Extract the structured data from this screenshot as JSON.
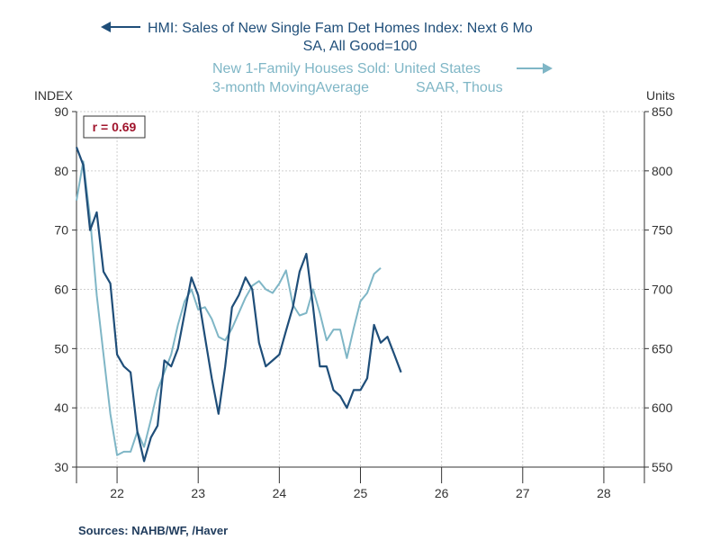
{
  "chart_data": {
    "type": "line",
    "title_dark_line1": "HMI: Sales of New Single Fam Det Homes Index: Next 6 Mo",
    "title_dark_line2": "SA, All Good=100",
    "title_light_line1": "New 1-Family Houses Sold: United States",
    "title_light_line2": "3-month MovingAverage",
    "title_light_units": "SAAR, Thous",
    "left_axis_label": "INDEX",
    "right_axis_label": "Units",
    "annotation": "r = 0.69",
    "x_ticks": [
      "22",
      "23",
      "24",
      "25",
      "26",
      "27",
      "28"
    ],
    "x_range": [
      2021.5,
      2028.5
    ],
    "left_ylim": [
      30,
      90
    ],
    "left_ticks": [
      30,
      40,
      50,
      60,
      70,
      80,
      90
    ],
    "right_ylim": [
      550,
      850
    ],
    "right_ticks": [
      550,
      600,
      650,
      700,
      750,
      800,
      850
    ],
    "grid": true,
    "series": [
      {
        "name": "HMI: Sales of New Single Fam Det Homes Index: Next 6 Mo",
        "axis": "left",
        "color": "#1f4e79",
        "x": [
          2021.5,
          2021.583,
          2021.667,
          2021.75,
          2021.833,
          2021.917,
          2022.0,
          2022.083,
          2022.167,
          2022.25,
          2022.333,
          2022.417,
          2022.5,
          2022.583,
          2022.667,
          2022.75,
          2022.833,
          2022.917,
          2023.0,
          2023.083,
          2023.167,
          2023.25,
          2023.333,
          2023.417,
          2023.5,
          2023.583,
          2023.667,
          2023.75,
          2023.833,
          2023.917,
          2024.0,
          2024.083,
          2024.167,
          2024.25,
          2024.333,
          2024.417,
          2024.5,
          2024.583,
          2024.667,
          2024.75,
          2024.833,
          2024.917,
          2025.0,
          2025.083,
          2025.167,
          2025.25,
          2025.333,
          2025.417,
          2025.5,
          2025.583,
          2025.667
        ],
        "values": [
          84,
          81,
          70,
          73,
          63,
          61,
          49,
          47,
          46,
          36,
          31,
          35,
          37,
          48,
          47,
          50,
          56,
          62,
          59,
          52,
          45,
          39,
          47,
          57,
          59,
          62,
          60,
          51,
          47,
          48,
          49,
          53,
          57,
          63,
          66,
          57,
          47,
          47,
          43,
          42,
          40,
          43,
          43,
          45,
          54,
          51,
          52,
          49,
          46,
          null,
          null
        ]
      },
      {
        "name": "New 1-Family Houses Sold: United States 3-month MovingAverage",
        "axis": "right",
        "color": "#7fb6c6",
        "x": [
          2021.5,
          2021.583,
          2021.667,
          2021.75,
          2021.833,
          2021.917,
          2022.0,
          2022.083,
          2022.167,
          2022.25,
          2022.333,
          2022.417,
          2022.5,
          2022.583,
          2022.667,
          2022.75,
          2022.833,
          2022.917,
          2023.0,
          2023.083,
          2023.167,
          2023.25,
          2023.333,
          2023.417,
          2023.5,
          2023.583,
          2023.667,
          2023.75,
          2023.833,
          2023.917,
          2024.0,
          2024.083,
          2024.167,
          2024.25,
          2024.333,
          2024.417,
          2024.5,
          2024.583,
          2024.667,
          2024.75,
          2024.833,
          2024.917,
          2025.0,
          2025.083,
          2025.167,
          2025.25,
          2025.333,
          2025.417,
          2025.5,
          2025.583,
          2025.667
        ],
        "values": [
          775,
          808,
          760,
          695,
          645,
          595,
          560,
          563,
          563,
          580,
          567,
          590,
          615,
          630,
          645,
          670,
          690,
          700,
          683,
          685,
          675,
          660,
          657,
          667,
          680,
          693,
          703,
          707,
          700,
          697,
          705,
          716,
          687,
          678,
          680,
          700,
          680,
          657,
          666,
          666,
          642,
          667,
          690,
          697,
          713,
          718,
          null,
          null,
          null,
          null,
          null
        ]
      }
    ]
  },
  "source": "Sources:  NAHB/WF, /Haver"
}
